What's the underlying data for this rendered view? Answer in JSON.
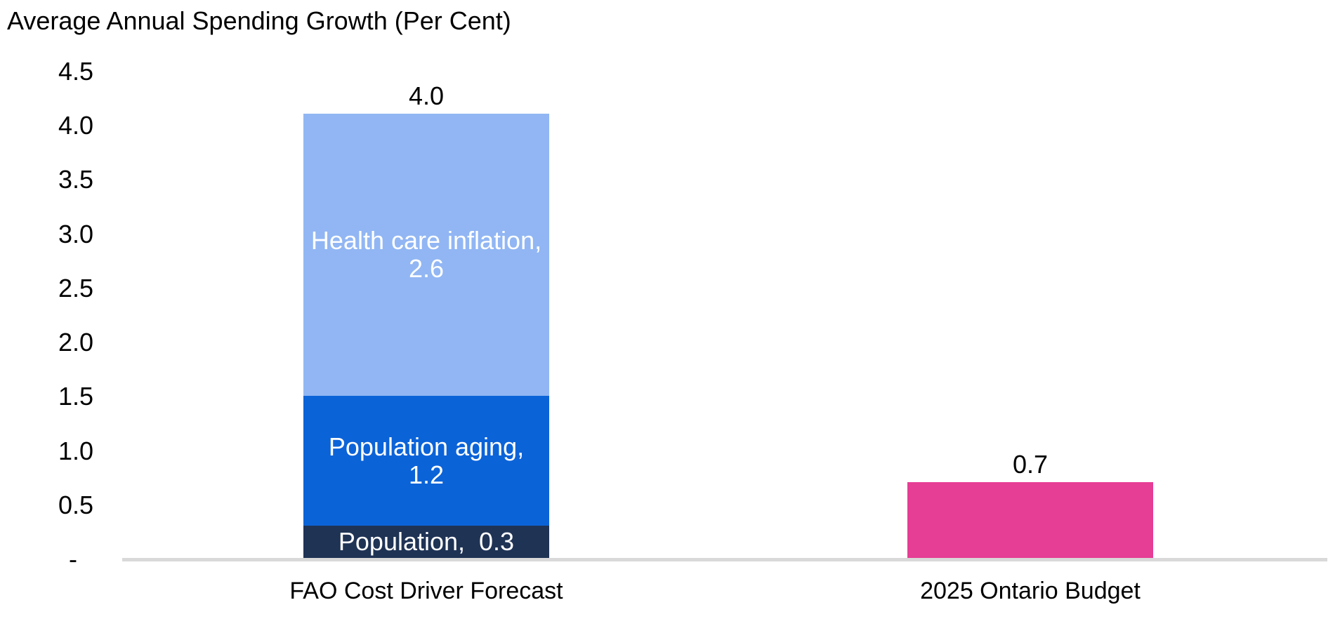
{
  "page": {
    "background_color": "#FFFFFF",
    "text_color": "#000000"
  },
  "chart_data": {
    "type": "bar",
    "stacked": true,
    "title": "Average Annual Spending Growth (Per Cent)",
    "xlabel": "",
    "ylabel": "",
    "ylim": [
      0,
      4.5
    ],
    "ytick_step": 0.5,
    "ytick_labels": [
      "4.5",
      "4.0",
      "3.5",
      "3.0",
      "2.5",
      "2.0",
      "1.5",
      "1.0",
      "0.5",
      "-"
    ],
    "grid": false,
    "legend_position": "none",
    "axis_line_color": "#D9D9D9",
    "categories": [
      "FAO Cost Driver Forecast",
      "2025 Ontario Budget"
    ],
    "series": [
      {
        "name": "Population",
        "values": [
          0.3,
          null
        ],
        "color": "#1F3355"
      },
      {
        "name": "Population aging",
        "values": [
          1.2,
          null
        ],
        "color": "#0B63D8"
      },
      {
        "name": "Health care inflation",
        "values": [
          2.6,
          null
        ],
        "color": "#91B6F3"
      },
      {
        "name": "2025 Ontario Budget",
        "values": [
          null,
          0.7
        ],
        "color": "#E63D95"
      }
    ],
    "bar_total_labels": [
      "4.0",
      "0.7"
    ],
    "bars": [
      {
        "category": "FAO Cost Driver Forecast",
        "total_label": "4.0",
        "segments": [
          {
            "name": "Population",
            "value": 0.3,
            "color": "#1F3355",
            "lines": [
              "Population,  0.3"
            ]
          },
          {
            "name": "Population aging",
            "value": 1.2,
            "color": "#0B63D8",
            "lines": [
              "Population aging,",
              "1.2"
            ]
          },
          {
            "name": "Health care inflation",
            "value": 2.6,
            "color": "#91B6F3",
            "lines": [
              "Health care inflation,",
              "2.6"
            ]
          }
        ]
      },
      {
        "category": "2025 Ontario Budget",
        "total_label": "0.7",
        "segments": [
          {
            "name": "2025 Ontario Budget",
            "value": 0.7,
            "color": "#E63D95",
            "lines": []
          }
        ]
      }
    ]
  }
}
